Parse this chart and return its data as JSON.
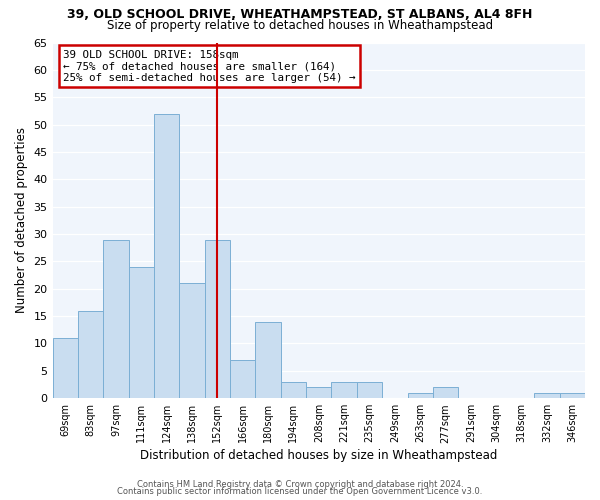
{
  "title_line1": "39, OLD SCHOOL DRIVE, WHEATHAMPSTEAD, ST ALBANS, AL4 8FH",
  "title_line2": "Size of property relative to detached houses in Wheathampstead",
  "xlabel": "Distribution of detached houses by size in Wheathampstead",
  "ylabel": "Number of detached properties",
  "bin_labels": [
    "69sqm",
    "83sqm",
    "97sqm",
    "111sqm",
    "124sqm",
    "138sqm",
    "152sqm",
    "166sqm",
    "180sqm",
    "194sqm",
    "208sqm",
    "221sqm",
    "235sqm",
    "249sqm",
    "263sqm",
    "277sqm",
    "291sqm",
    "304sqm",
    "318sqm",
    "332sqm",
    "346sqm"
  ],
  "bar_heights": [
    11,
    16,
    29,
    24,
    52,
    21,
    29,
    7,
    14,
    3,
    2,
    3,
    3,
    0,
    1,
    2,
    0,
    0,
    0,
    1,
    1
  ],
  "bar_color": "#c9ddf0",
  "bar_edge_color": "#7bafd4",
  "vline_x_idx": 6.5,
  "annotation_title": "39 OLD SCHOOL DRIVE: 158sqm",
  "annotation_line2": "← 75% of detached houses are smaller (164)",
  "annotation_line3": "25% of semi-detached houses are larger (54) →",
  "annotation_box_color": "#ffffff",
  "annotation_box_edge": "#cc0000",
  "ylim": [
    0,
    65
  ],
  "yticks": [
    0,
    5,
    10,
    15,
    20,
    25,
    30,
    35,
    40,
    45,
    50,
    55,
    60,
    65
  ],
  "footer_line1": "Contains HM Land Registry data © Crown copyright and database right 2024.",
  "footer_line2": "Contains public sector information licensed under the Open Government Licence v3.0.",
  "bg_color": "#ffffff",
  "plot_bg_color": "#f0f5fc",
  "grid_color": "#ffffff",
  "n_bars": 21
}
